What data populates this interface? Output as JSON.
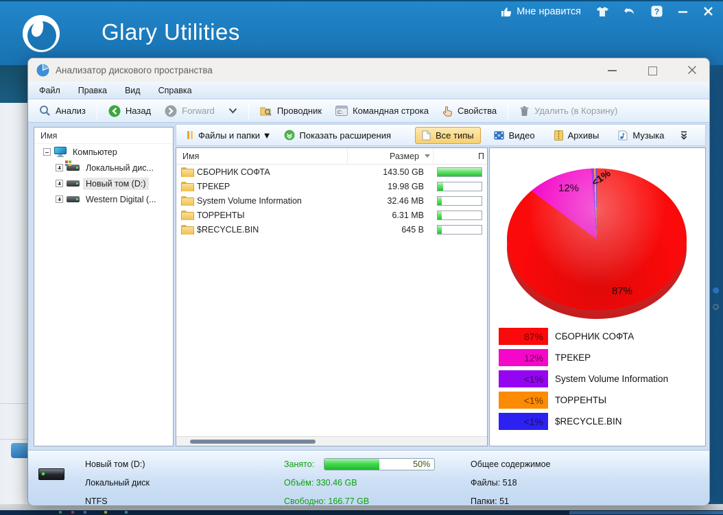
{
  "app": {
    "title": "Glary Utilities",
    "like_label": "Мне нравится"
  },
  "window": {
    "title": "Анализатор дискового пространства",
    "menu": [
      "Файл",
      "Правка",
      "Вид",
      "Справка"
    ],
    "toolbar": {
      "analyze": "Анализ",
      "back": "Назад",
      "forward": "Forward",
      "explorer": "Проводник",
      "cmd": "Командная строка",
      "properties": "Свойства",
      "delete": "Удалить (в Корзину)"
    },
    "filterbar": {
      "files_folders": "Файлы и папки ▼",
      "show_extensions": "Показать расширения",
      "all_types": "Все типы",
      "video": "Видео",
      "archives": "Архивы",
      "music": "Музыка"
    }
  },
  "tree": {
    "header": "Имя",
    "root": "Компьютер",
    "items": [
      {
        "label": "Локальный дис..."
      },
      {
        "label": "Новый том (D:)"
      },
      {
        "label": "Western Digital (..."
      }
    ]
  },
  "list": {
    "columns": {
      "name": "Имя",
      "size": "Размер",
      "percent": "П"
    },
    "rows": [
      {
        "name": "СБОРНИК СОФТА",
        "size": "143.50 GB",
        "bar": 100
      },
      {
        "name": "ТРЕКЕР",
        "size": "19.98 GB",
        "bar": 13
      },
      {
        "name": "System Volume Information",
        "size": "32.46 MB",
        "bar": 9
      },
      {
        "name": "ТОРРЕНТЫ",
        "size": "6.31 MB",
        "bar": 9
      },
      {
        "name": "$RECYCLE.BIN",
        "size": "645 B",
        "bar": 9
      }
    ]
  },
  "chart_data": {
    "type": "pie",
    "title": "",
    "labels": [
      "СБОРНИК СОФТА",
      "ТРЕКЕР",
      "System Volume Information",
      "ТОРРЕНТЫ",
      "$RECYCLE.BIN"
    ],
    "values_percent": [
      87,
      12,
      0.5,
      0.3,
      0.2
    ],
    "display_percent": [
      "87%",
      "12%",
      "<1%",
      "<1%",
      "<1%"
    ],
    "colors": [
      "#fa0a0a",
      "#f407c8",
      "#9405f2",
      "#fb8b04",
      "#2b22f2"
    ],
    "legend_position": "bottom-left",
    "start_angle_deg": 0,
    "direction": "clockwise"
  },
  "status": {
    "volume": "Новый том (D:)",
    "disk_type": "Локальный диск",
    "fs": "NTFS",
    "used_label": "Занято:",
    "used_value": 50,
    "used_percent": "50%",
    "capacity": "Объём: 330.46 GB",
    "free": "Свободно: 166.77 GB",
    "summary_title": "Общее содержимое",
    "files": "Файлы: 518",
    "folders": "Папки: 51"
  }
}
